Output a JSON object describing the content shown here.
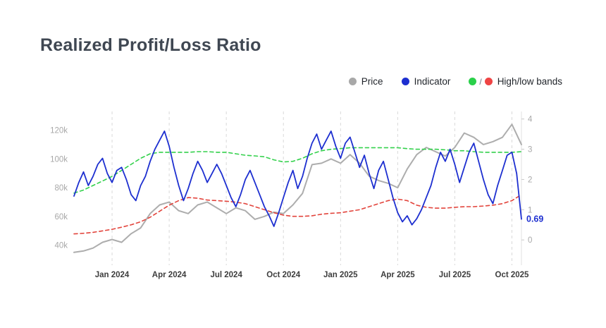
{
  "title": "Realized Profit/Loss Ratio",
  "legend": [
    {
      "label": "Price",
      "color": "#a8a8a8"
    },
    {
      "label": "Indicator",
      "color": "#1d2fd0"
    },
    {
      "label": "High/low bands",
      "color_high": "#2ad04a",
      "color_low": "#ef4444"
    }
  ],
  "annotation": {
    "text": "0.69",
    "value": 0.69,
    "axis": "right",
    "color": "#1d2fd0"
  },
  "chart_data": {
    "type": "line",
    "title": "Realized Profit/Loss Ratio",
    "x_unit": "months since Nov 2023",
    "x_range": [
      0,
      23.5
    ],
    "grid": "vertical-dashed",
    "legend_position": "top-right",
    "x_ticks": [
      {
        "m": 2,
        "label": "Jan 2024"
      },
      {
        "m": 5,
        "label": "Apr 2024"
      },
      {
        "m": 8,
        "label": "Jul 2024"
      },
      {
        "m": 11,
        "label": "Oct 2024"
      },
      {
        "m": 14,
        "label": "Jan 2025"
      },
      {
        "m": 17,
        "label": "Apr 2025"
      },
      {
        "m": 20,
        "label": "Jul 2025"
      },
      {
        "m": 23,
        "label": "Oct 2025"
      }
    ],
    "left_axis": {
      "unit": "USD thousands",
      "range": [
        30,
        133
      ],
      "ticks": [
        {
          "v": 40,
          "label": "40k"
        },
        {
          "v": 60,
          "label": "60k"
        },
        {
          "v": 80,
          "label": "80k"
        },
        {
          "v": 100,
          "label": "100k"
        },
        {
          "v": 120,
          "label": "120k"
        }
      ]
    },
    "right_axis": {
      "unit": "ratio",
      "range": [
        -0.65,
        4.25
      ],
      "ticks": [
        {
          "v": 0,
          "label": "0"
        },
        {
          "v": 1,
          "label": "1"
        },
        {
          "v": 2,
          "label": "2"
        },
        {
          "v": 3,
          "label": "3"
        },
        {
          "v": 4,
          "label": "4"
        }
      ]
    },
    "series": [
      {
        "name": "Price",
        "axis": "left",
        "color": "#adadad",
        "style": "solid",
        "width": 2,
        "x_start": 0,
        "x_step": 0.5,
        "values": [
          35,
          36,
          38,
          42,
          44,
          42,
          48,
          52,
          62,
          68,
          70,
          64,
          62,
          68,
          70,
          66,
          62,
          66,
          64,
          58,
          60,
          63,
          62,
          68,
          76,
          96,
          97,
          100,
          97,
          103,
          97,
          88,
          85,
          83,
          80,
          93,
          103,
          108,
          105,
          102,
          108,
          118,
          115,
          110,
          112,
          115,
          124,
          110
        ]
      },
      {
        "name": "High band",
        "axis": "right",
        "color": "#33d14c",
        "style": "dashed",
        "width": 1.6,
        "x_start": 0,
        "x_step": 0.5,
        "values": [
          1.55,
          1.65,
          1.8,
          1.95,
          2.1,
          2.3,
          2.5,
          2.7,
          2.85,
          2.9,
          2.9,
          2.9,
          2.9,
          2.92,
          2.92,
          2.9,
          2.9,
          2.85,
          2.8,
          2.78,
          2.75,
          2.65,
          2.58,
          2.6,
          2.7,
          2.85,
          2.95,
          3.0,
          3.02,
          3.05,
          3.05,
          3.05,
          3.05,
          3.05,
          3.05,
          3.02,
          3.0,
          3.0,
          3.0,
          2.98,
          2.95,
          2.95,
          2.92,
          2.9,
          2.9,
          2.9,
          2.9,
          2.92
        ]
      },
      {
        "name": "Low band",
        "axis": "right",
        "color": "#e2443c",
        "style": "dashed",
        "width": 1.6,
        "x_start": 0,
        "x_step": 0.5,
        "values": [
          0.2,
          0.22,
          0.25,
          0.3,
          0.35,
          0.42,
          0.5,
          0.6,
          0.75,
          0.95,
          1.15,
          1.3,
          1.4,
          1.38,
          1.32,
          1.3,
          1.28,
          1.25,
          1.2,
          1.1,
          1.0,
          0.9,
          0.82,
          0.78,
          0.78,
          0.8,
          0.85,
          0.88,
          0.9,
          0.95,
          1.0,
          1.1,
          1.2,
          1.3,
          1.35,
          1.3,
          1.15,
          1.08,
          1.05,
          1.05,
          1.08,
          1.1,
          1.1,
          1.12,
          1.15,
          1.2,
          1.3,
          1.5
        ]
      },
      {
        "name": "Indicator",
        "axis": "right",
        "color": "#1d2fd0",
        "style": "solid",
        "width": 1.8,
        "x_start": 0,
        "x_step": 0.25,
        "values": [
          1.45,
          1.9,
          2.25,
          1.8,
          2.1,
          2.5,
          2.7,
          2.2,
          1.9,
          2.3,
          2.4,
          2.0,
          1.5,
          1.3,
          1.8,
          2.1,
          2.6,
          3.0,
          3.3,
          3.6,
          3.1,
          2.4,
          1.8,
          1.3,
          1.7,
          2.2,
          2.6,
          2.3,
          1.9,
          2.2,
          2.5,
          2.2,
          1.8,
          1.4,
          1.1,
          1.5,
          2.0,
          2.3,
          1.9,
          1.5,
          1.1,
          0.8,
          0.45,
          0.9,
          1.4,
          1.9,
          2.3,
          1.7,
          2.1,
          2.7,
          3.2,
          3.5,
          3.0,
          3.3,
          3.6,
          3.1,
          2.7,
          3.2,
          3.4,
          2.9,
          2.4,
          2.8,
          2.2,
          1.7,
          2.3,
          2.6,
          2.0,
          1.4,
          0.9,
          0.6,
          0.8,
          0.5,
          0.7,
          1.0,
          1.4,
          1.8,
          2.4,
          2.9,
          2.6,
          3.0,
          2.5,
          1.9,
          2.4,
          2.9,
          3.2,
          2.6,
          2.0,
          1.5,
          1.2,
          1.8,
          2.3,
          2.8,
          2.9,
          2.2,
          0.69
        ]
      }
    ]
  }
}
